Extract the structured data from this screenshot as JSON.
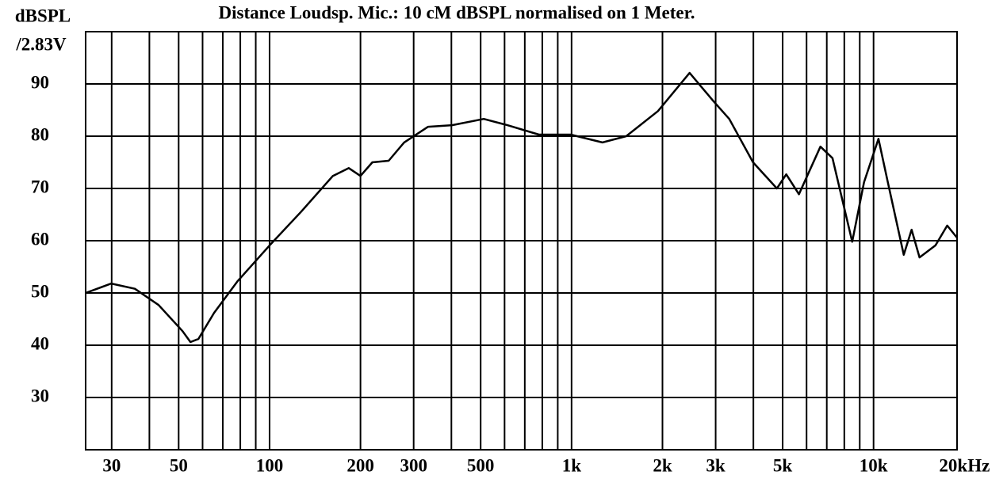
{
  "chart_data": {
    "type": "line",
    "title": "Distance Loudsp. Mic.: 10 cM dBSPL normalised on 1 Meter.",
    "y_label": [
      "dBSPL",
      "/2.83V"
    ],
    "log_x": true,
    "grid": true,
    "xlim": [
      24.6,
      18900
    ],
    "ylim": [
      20,
      100
    ],
    "yticks": [
      30,
      40,
      50,
      60,
      70,
      80,
      90
    ],
    "xticks": [
      30,
      50,
      100,
      200,
      300,
      500,
      {
        "value": 1000,
        "label": "1k"
      },
      {
        "value": 2000,
        "label": "2k"
      },
      {
        "value": 3000,
        "label": "3k"
      },
      {
        "value": 5000,
        "label": "5k"
      },
      {
        "value": 10000,
        "label": "10k"
      },
      {
        "value": 20000,
        "label": "20kHz"
      }
    ],
    "x_minor_grid": [
      40,
      60,
      70,
      80,
      90,
      400,
      600,
      700,
      800,
      900,
      4000,
      6000,
      7000,
      8000,
      9000
    ],
    "series": [
      {
        "color": "#000000",
        "x": [
          24.6,
          29.9,
          35.8,
          42.9,
          51.5,
          54.7,
          58.1,
          65.5,
          78.5,
          100,
          127,
          162,
          183,
          200,
          219,
          248,
          279,
          335,
          402,
          512,
          613,
          780,
          993,
          1265,
          1517,
          1932,
          2460,
          2951,
          3327,
          3990,
          4786,
          5140,
          5662,
          6668,
          7310,
          8497,
          9300,
          10380,
          11150,
          12590,
          13370,
          14200,
          16030,
          17540,
          18880
        ],
        "values": [
          50,
          51.8,
          50.8,
          47.7,
          42.7,
          40.6,
          41.2,
          46.2,
          52.3,
          59.1,
          65.5,
          72.4,
          73.9,
          72.4,
          75,
          75.3,
          78.8,
          81.8,
          82.1,
          83.3,
          82.1,
          80.3,
          80.3,
          78.8,
          80,
          84.8,
          92.1,
          86.7,
          83.3,
          75,
          70,
          72.7,
          68.9,
          78,
          75.8,
          59.8,
          71.2,
          79.5,
          71.2,
          57.3,
          62.1,
          56.8,
          59.1,
          62.9,
          60.6
        ]
      }
    ]
  }
}
